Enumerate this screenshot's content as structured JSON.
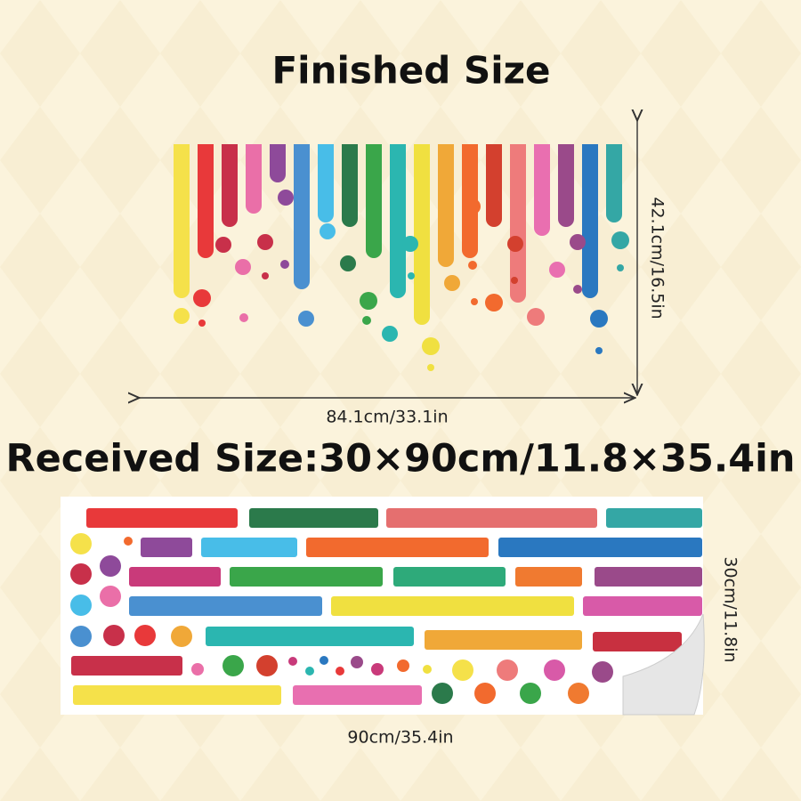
{
  "finished": {
    "title": "Finished Size",
    "width_label": "84.1cm/33.1in",
    "height_label": "42.1cm/16.5in"
  },
  "received": {
    "title": "Received Size:30×90cm/11.8×35.4in",
    "width_label": "90cm/35.4in",
    "height_label": "30cm/11.8in"
  }
}
